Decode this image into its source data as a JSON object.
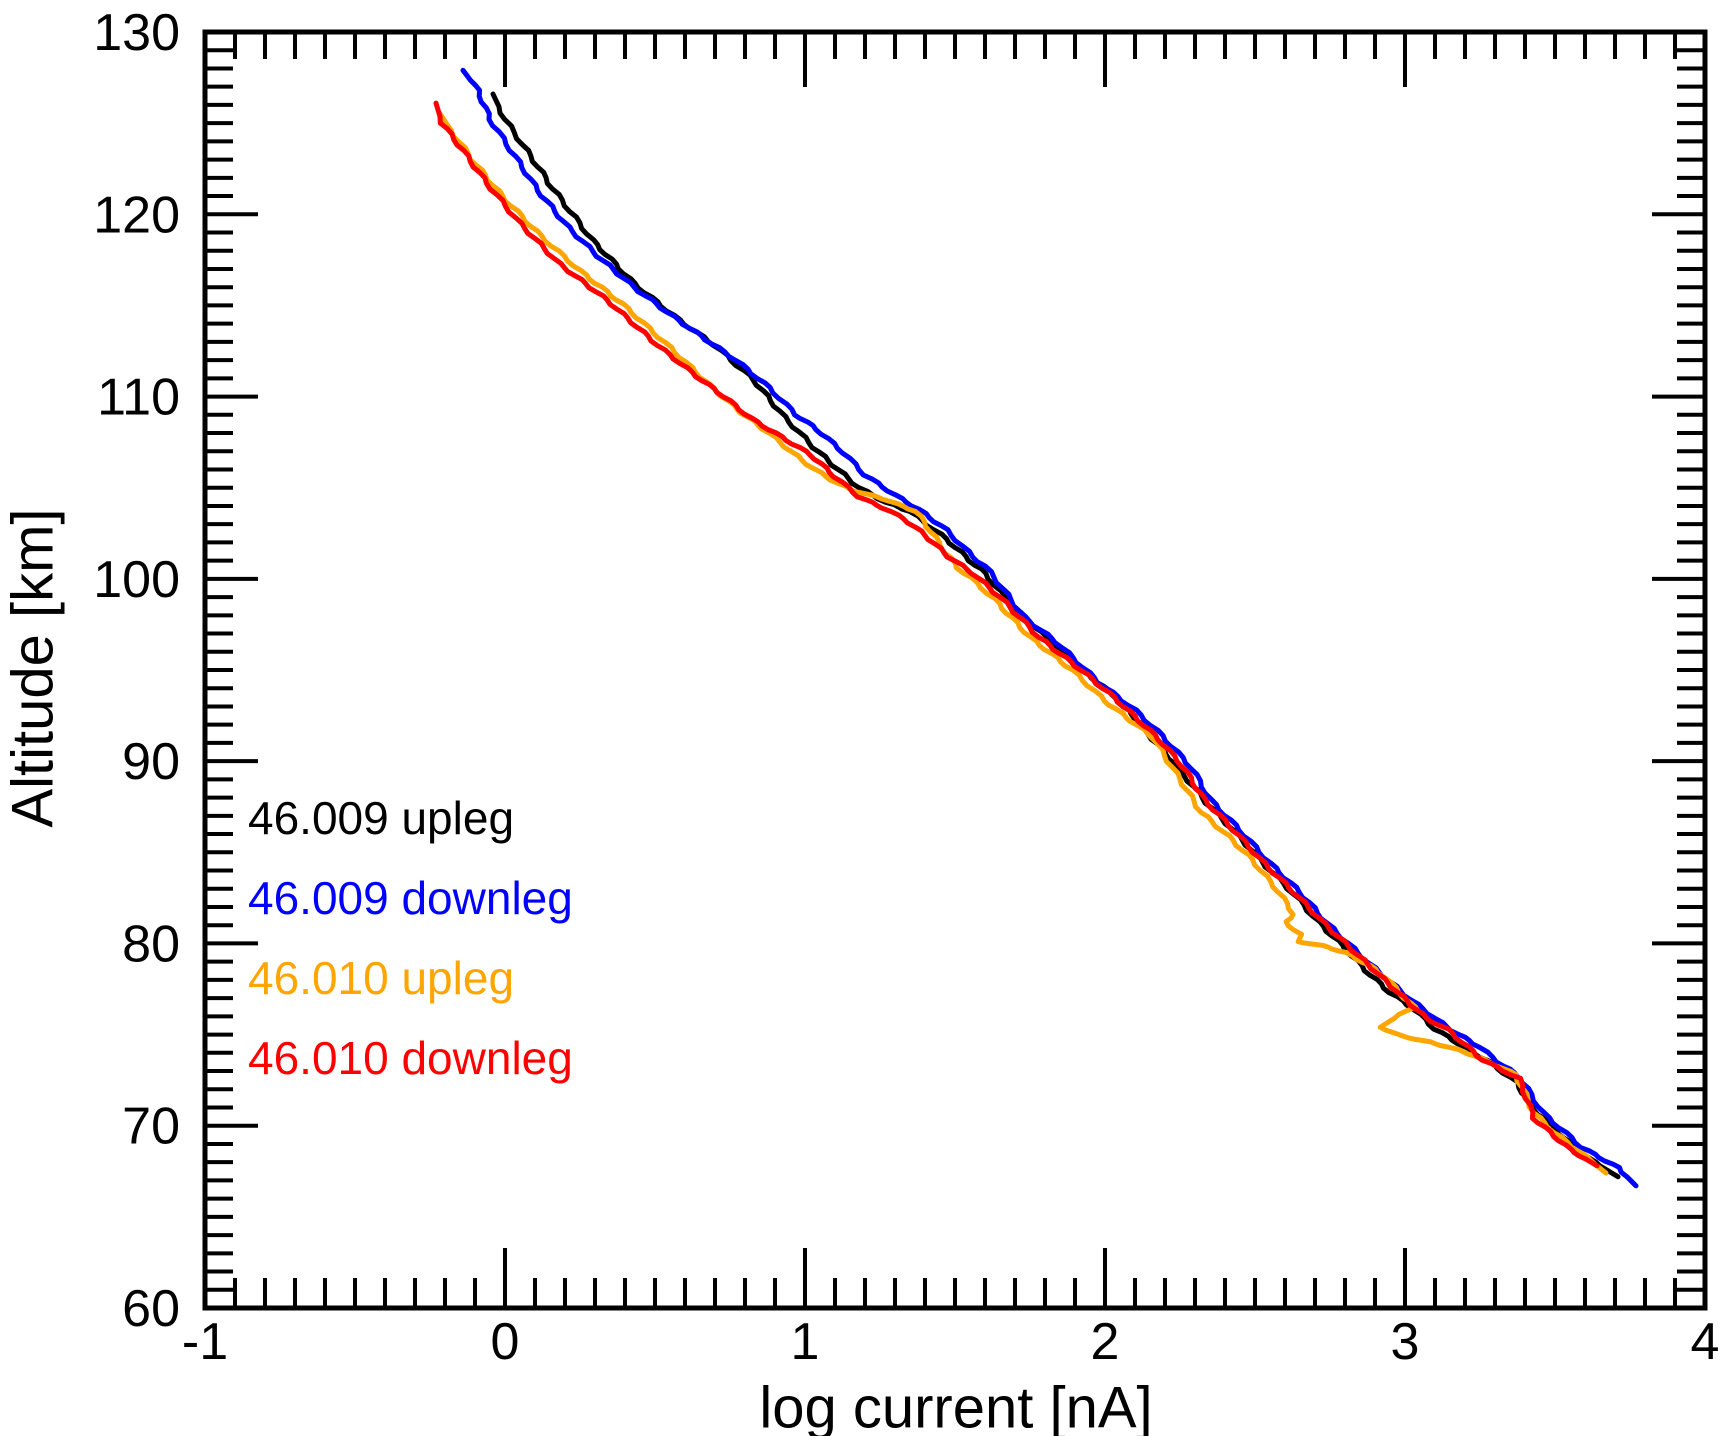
{
  "figure": {
    "background": "#ffffff",
    "axis_color": "#000000"
  },
  "chart_data": {
    "type": "line",
    "title": "",
    "xlabel": "log current [nA]",
    "ylabel": "Altitude [km]",
    "xlim": [
      -1,
      4
    ],
    "ylim": [
      60,
      130
    ],
    "x_major_ticks": [
      -1,
      0,
      1,
      2,
      3,
      4
    ],
    "x_minor_step": 0.1,
    "y_major_ticks": [
      60,
      70,
      80,
      90,
      100,
      110,
      120,
      130
    ],
    "y_minor_step": 1,
    "grid": false,
    "legend_position": "inside middle-left, text only",
    "series": [
      {
        "name": "46.009 upleg",
        "color": "#000000",
        "points": [
          [
            -0.04,
            126.6
          ],
          [
            0.0,
            125.2
          ],
          [
            0.06,
            123.8
          ],
          [
            0.16,
            121.4
          ],
          [
            0.29,
            118.6
          ],
          [
            0.43,
            116.2
          ],
          [
            0.58,
            114.2
          ],
          [
            0.7,
            112.8
          ],
          [
            0.83,
            110.9
          ],
          [
            0.93,
            108.9
          ],
          [
            1.03,
            107.2
          ],
          [
            1.11,
            106.0
          ],
          [
            1.18,
            105.0
          ],
          [
            1.27,
            104.2
          ],
          [
            1.35,
            103.7
          ],
          [
            1.47,
            102.2
          ],
          [
            1.55,
            101.0
          ],
          [
            1.6,
            100.3
          ],
          [
            1.68,
            98.7
          ],
          [
            1.75,
            97.6
          ],
          [
            1.83,
            96.4
          ],
          [
            1.94,
            94.8
          ],
          [
            2.06,
            93.2
          ],
          [
            2.16,
            91.2
          ],
          [
            2.22,
            90.1
          ],
          [
            2.34,
            87.7
          ],
          [
            2.44,
            86.0
          ],
          [
            2.54,
            84.2
          ],
          [
            2.63,
            82.7
          ],
          [
            2.71,
            81.2
          ],
          [
            2.79,
            79.9
          ],
          [
            2.87,
            78.5
          ],
          [
            2.95,
            77.3
          ],
          [
            3.03,
            76.4
          ],
          [
            3.1,
            75.3
          ],
          [
            3.22,
            74.1
          ],
          [
            3.29,
            73.4
          ],
          [
            3.37,
            72.4
          ],
          [
            3.43,
            70.9
          ],
          [
            3.54,
            69.2
          ],
          [
            3.63,
            68.0
          ],
          [
            3.71,
            67.2
          ]
        ]
      },
      {
        "name": "46.009 downleg",
        "color": "#0000ff",
        "points": [
          [
            -0.14,
            127.9
          ],
          [
            -0.09,
            126.8
          ],
          [
            -0.05,
            125.2
          ],
          [
            0.02,
            123.5
          ],
          [
            0.11,
            121.3
          ],
          [
            0.21,
            119.3
          ],
          [
            0.31,
            117.7
          ],
          [
            0.43,
            116.0
          ],
          [
            0.56,
            114.4
          ],
          [
            0.69,
            112.9
          ],
          [
            0.77,
            112.0
          ],
          [
            0.88,
            110.5
          ],
          [
            0.97,
            109.0
          ],
          [
            1.04,
            108.2
          ],
          [
            1.13,
            106.9
          ],
          [
            1.2,
            105.7
          ],
          [
            1.3,
            104.6
          ],
          [
            1.38,
            103.8
          ],
          [
            1.47,
            102.7
          ],
          [
            1.56,
            101.2
          ],
          [
            1.6,
            100.7
          ],
          [
            1.63,
            100.1
          ],
          [
            1.73,
            97.9
          ],
          [
            1.84,
            96.5
          ],
          [
            1.98,
            94.3
          ],
          [
            2.1,
            92.8
          ],
          [
            2.19,
            91.4
          ],
          [
            2.29,
            89.6
          ],
          [
            2.35,
            87.9
          ],
          [
            2.45,
            86.2
          ],
          [
            2.55,
            84.4
          ],
          [
            2.65,
            82.8
          ],
          [
            2.74,
            81.1
          ],
          [
            2.88,
            78.9
          ],
          [
            3.02,
            76.9
          ],
          [
            3.14,
            75.4
          ],
          [
            3.25,
            74.3
          ],
          [
            3.31,
            73.5
          ],
          [
            3.38,
            72.7
          ],
          [
            3.46,
            70.7
          ],
          [
            3.59,
            68.8
          ],
          [
            3.71,
            67.7
          ],
          [
            3.77,
            66.7
          ]
        ]
      },
      {
        "name": "46.010 upleg",
        "color": "#ffa500",
        "points": [
          [
            -0.22,
            125.6
          ],
          [
            -0.18,
            124.6
          ],
          [
            -0.11,
            123.0
          ],
          [
            -0.01,
            121.0
          ],
          [
            0.12,
            118.8
          ],
          [
            0.25,
            116.9
          ],
          [
            0.39,
            115.1
          ],
          [
            0.55,
            112.7
          ],
          [
            0.69,
            110.5
          ],
          [
            0.79,
            109.1
          ],
          [
            0.88,
            108.0
          ],
          [
            0.99,
            106.5
          ],
          [
            1.07,
            105.6
          ],
          [
            1.15,
            104.9
          ],
          [
            1.26,
            104.4
          ],
          [
            1.37,
            103.7
          ],
          [
            1.42,
            102.6
          ],
          [
            1.47,
            101.4
          ],
          [
            1.51,
            100.6
          ],
          [
            1.57,
            99.8
          ],
          [
            1.63,
            98.9
          ],
          [
            1.75,
            96.8
          ],
          [
            1.89,
            95.0
          ],
          [
            2.0,
            93.3
          ],
          [
            2.16,
            91.3
          ],
          [
            2.25,
            89.0
          ],
          [
            2.32,
            87.2
          ],
          [
            2.41,
            85.9
          ],
          [
            2.49,
            84.6
          ],
          [
            2.58,
            82.8
          ],
          [
            2.63,
            81.6
          ],
          [
            2.6,
            81.2
          ],
          [
            2.65,
            80.5
          ],
          [
            2.64,
            80.1
          ],
          [
            2.72,
            79.9
          ],
          [
            2.8,
            79.5
          ],
          [
            2.88,
            78.8
          ],
          [
            2.93,
            78.2
          ],
          [
            3.0,
            77.0
          ],
          [
            3.03,
            76.5
          ],
          [
            2.94,
            75.7
          ],
          [
            2.92,
            75.4
          ],
          [
            2.99,
            74.9
          ],
          [
            3.08,
            74.6
          ],
          [
            3.19,
            74.1
          ],
          [
            3.28,
            73.5
          ],
          [
            3.37,
            72.8
          ],
          [
            3.43,
            70.7
          ],
          [
            3.5,
            69.6
          ],
          [
            3.58,
            68.6
          ],
          [
            3.67,
            67.4
          ]
        ]
      },
      {
        "name": "46.010 downleg",
        "color": "#ff0000",
        "points": [
          [
            -0.23,
            126.1
          ],
          [
            -0.21,
            125.0
          ],
          [
            -0.14,
            123.5
          ],
          [
            -0.06,
            121.7
          ],
          [
            0.05,
            119.5
          ],
          [
            0.18,
            117.3
          ],
          [
            0.34,
            115.3
          ],
          [
            0.51,
            112.8
          ],
          [
            0.64,
            111.1
          ],
          [
            0.73,
            110.0
          ],
          [
            0.82,
            108.8
          ],
          [
            0.92,
            107.8
          ],
          [
            1.02,
            106.8
          ],
          [
            1.1,
            105.6
          ],
          [
            1.18,
            104.5
          ],
          [
            1.26,
            103.9
          ],
          [
            1.33,
            103.3
          ],
          [
            1.4,
            102.4
          ],
          [
            1.48,
            101.2
          ],
          [
            1.56,
            100.3
          ],
          [
            1.65,
            99.0
          ],
          [
            1.78,
            96.8
          ],
          [
            1.92,
            95.0
          ],
          [
            2.03,
            93.5
          ],
          [
            2.18,
            91.2
          ],
          [
            2.26,
            89.7
          ],
          [
            2.33,
            87.9
          ],
          [
            2.43,
            86.2
          ],
          [
            2.53,
            84.4
          ],
          [
            2.63,
            82.8
          ],
          [
            2.73,
            81.1
          ],
          [
            2.86,
            79.1
          ],
          [
            2.99,
            77.1
          ],
          [
            3.07,
            75.9
          ],
          [
            3.14,
            75.3
          ],
          [
            3.26,
            73.6
          ],
          [
            3.33,
            73.0
          ],
          [
            3.38,
            72.6
          ],
          [
            3.43,
            70.4
          ],
          [
            3.55,
            68.7
          ],
          [
            3.64,
            67.8
          ]
        ]
      }
    ]
  }
}
